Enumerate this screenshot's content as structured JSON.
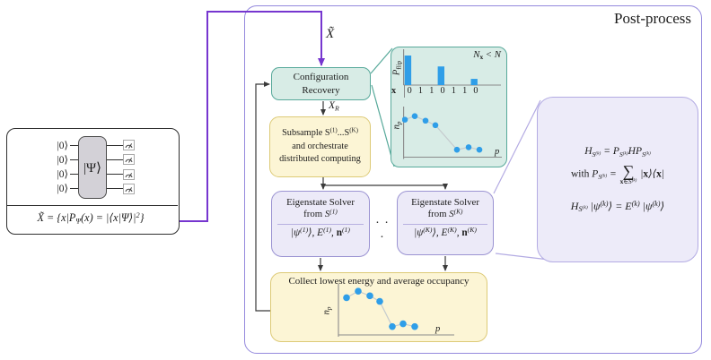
{
  "post_process": {
    "label": "Post-process"
  },
  "circuit": {
    "kets": [
      "|0⟩",
      "|0⟩",
      "|0⟩",
      "|0⟩"
    ],
    "gate_label": "|Ψ⟩",
    "formula": "X̃ = {x|P_{Ψ}(x) = |⟨x|Ψ⟩|^{2}}"
  },
  "labels": {
    "x_tilde": "X̃",
    "x_r": "X_{R}",
    "dots": "· · ·"
  },
  "config_recovery": {
    "line1": "Configuration",
    "line2": "Recovery"
  },
  "subsample": {
    "line1": "\\r{Subsample }S^{(1)}...S^{(K)}",
    "line2": "and orchestrate",
    "line3": "distributed computing"
  },
  "solver1": {
    "title1": "Eigenstate Solver",
    "title2": "\\r{from }S^{(1)}",
    "output": "|ψ^{(1)}⟩, E^{(1)}, \\b{n}^{(1)}"
  },
  "solverK": {
    "title1": "Eigenstate Solver",
    "title2": "\\r{from }S^{(K)}",
    "output": "|ψ^{(K)}⟩, E^{(K)}, \\b{n}^{(K)}"
  },
  "collect": {
    "title": "Collect lowest energy and average occupancy"
  },
  "bubble": {
    "eq1": "H_{S^{(k)}} = P_{S^{(k)}}HP_{S^{(k)}}",
    "eq2": "\\r{with } P_{S^{(k)}} = \\s{\\b{x}∈S^{(k)}} |\\b{x}⟩⟨\\b{x}|",
    "eq3": "H_{S^{(k)}} |ψ^{(k)}⟩ = E^{(k)} |ψ^{(k)}⟩"
  },
  "inset": {
    "annotation": "N_{\\b{x}} < N",
    "bar_ylabel": "P_{\\r{flip}}",
    "x_header": "\\b{x}",
    "scatter_ylabel": "n_{p}",
    "xlabel": "p"
  },
  "collect_chart": {
    "ylabel": "n_{p}",
    "xlabel": "p"
  },
  "colors": {
    "accent_purple": "#7636cf",
    "box_purple": "#9489dd",
    "teal": "#57a99a",
    "teal_fill": "#d8ece6",
    "yellow_border": "#ddca77",
    "yellow_fill": "#fcf5d5",
    "lavender_border": "#9b93d2",
    "lavender_fill": "#eceaf8",
    "bubble_border": "#b3abe3",
    "bubble_fill": "#edebf9",
    "data_blue": "#2f9ee8",
    "axis_gray": "#8a8a8a",
    "line_gray": "#c5cbce",
    "ink": "#1c1c1c"
  },
  "chart_data": [
    {
      "type": "bar",
      "title": "",
      "ylabel": "P_flip",
      "annotation": "N_x < N",
      "categories": [
        "0",
        "1",
        "1",
        "0",
        "1",
        "1",
        "0"
      ],
      "values": [
        1.0,
        0,
        0,
        0.63,
        0,
        0,
        0.21
      ],
      "ylim": [
        0,
        1.0
      ],
      "grid": false
    },
    {
      "type": "scatter",
      "ylabel": "n_p",
      "xlabel": "p",
      "x": [
        1,
        2,
        3,
        4,
        6,
        7,
        8
      ],
      "values": [
        0.73,
        0.8,
        0.71,
        0.62,
        0.13,
        0.18,
        0.13
      ],
      "ylim": [
        0,
        1.0
      ],
      "grid": false
    },
    {
      "type": "scatter",
      "ylabel": "n_p",
      "xlabel": "p",
      "x": [
        1,
        2,
        3,
        4,
        5,
        6,
        7
      ],
      "values": [
        0.78,
        0.92,
        0.82,
        0.7,
        0.16,
        0.22,
        0.16
      ],
      "ylim": [
        0,
        1.0
      ],
      "grid": false
    }
  ]
}
